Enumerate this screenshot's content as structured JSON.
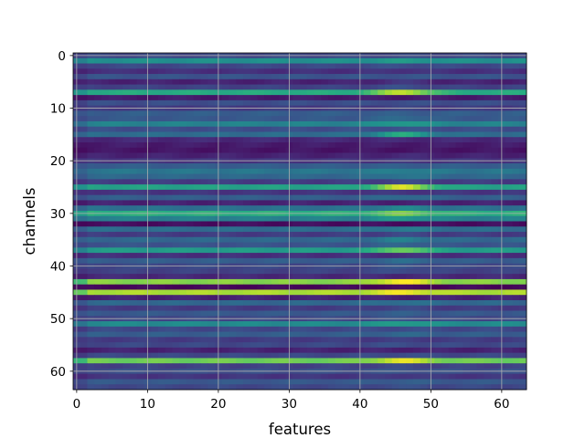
{
  "chart_data": {
    "type": "heatmap",
    "title": "",
    "xlabel": "features",
    "ylabel": "channels",
    "rows": 64,
    "cols": 64,
    "xlim": [
      -0.5,
      63.5
    ],
    "ylim": [
      63.5,
      -0.5
    ],
    "x_ticks": [
      0,
      10,
      20,
      30,
      40,
      50,
      60
    ],
    "y_ticks": [
      0,
      10,
      20,
      30,
      40,
      50,
      60
    ],
    "grid": true,
    "colormap": "viridis",
    "value_range": [
      0,
      1
    ],
    "row_base": [
      0.22,
      0.5,
      0.22,
      0.14,
      0.26,
      0.1,
      0.2,
      0.62,
      0.08,
      0.24,
      0.18,
      0.3,
      0.28,
      0.45,
      0.24,
      0.36,
      0.12,
      0.08,
      0.06,
      0.1,
      0.16,
      0.3,
      0.4,
      0.34,
      0.18,
      0.58,
      0.16,
      0.3,
      0.1,
      0.38,
      0.64,
      0.44,
      0.04,
      0.36,
      0.18,
      0.34,
      0.26,
      0.55,
      0.14,
      0.3,
      0.22,
      0.2,
      0.12,
      0.82,
      0.02,
      0.88,
      0.1,
      0.34,
      0.18,
      0.28,
      0.22,
      0.48,
      0.22,
      0.3,
      0.18,
      0.22,
      0.1,
      0.22,
      0.78,
      0.2,
      0.24,
      0.16,
      0.28,
      0.22
    ],
    "row_peak": [
      0.0,
      0.04,
      0.02,
      0.02,
      0.0,
      0.06,
      0.04,
      0.3,
      0.0,
      0.0,
      0.02,
      0.0,
      0.08,
      0.1,
      0.02,
      0.26,
      0.0,
      0.0,
      0.0,
      0.02,
      0.0,
      0.0,
      0.04,
      0.06,
      0.04,
      0.36,
      0.0,
      0.06,
      0.0,
      0.08,
      0.16,
      0.1,
      0.0,
      0.06,
      0.04,
      0.1,
      0.08,
      0.24,
      0.0,
      0.06,
      0.04,
      0.04,
      0.0,
      0.18,
      0.0,
      0.1,
      0.0,
      0.04,
      0.04,
      0.02,
      0.04,
      0.08,
      0.02,
      0.04,
      0.0,
      0.02,
      0.0,
      0.02,
      0.18,
      0.02,
      0.02,
      0.02,
      0.02,
      0.02
    ],
    "peak_center": 46,
    "peak_width": 4
  }
}
